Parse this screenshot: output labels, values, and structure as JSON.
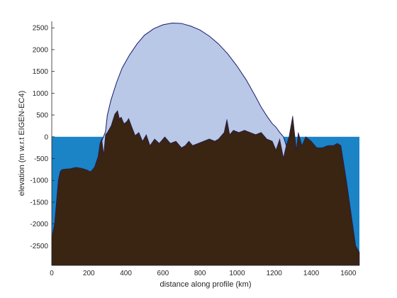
{
  "chart_data": {
    "type": "area",
    "xlabel": "distance along profile (km)",
    "ylabel": "elevation (m w.r.t EIGEN-EC4)",
    "xlim": [
      0,
      1660
    ],
    "ylim": [
      -2950,
      2650
    ],
    "xticks": [
      0,
      200,
      400,
      600,
      800,
      1000,
      1200,
      1400,
      1600
    ],
    "yticks": [
      -2500,
      -2000,
      -1500,
      -1000,
      -500,
      0,
      500,
      1000,
      1500,
      2000,
      2500
    ],
    "grid": false,
    "colors": {
      "ocean": "#1a84c7",
      "ice": "#b8c8e6",
      "bed": "#3a2412",
      "ice_outline": "#1a1a6e",
      "axis": "#262626"
    },
    "series": [
      {
        "role": "ocean",
        "x": [
          0,
          1660
        ],
        "values": [
          0,
          0
        ]
      },
      {
        "role": "ice-surface",
        "x": [
          270,
          290,
          300,
          320,
          350,
          380,
          420,
          460,
          500,
          550,
          600,
          650,
          700,
          750,
          800,
          850,
          900,
          950,
          1000,
          1050,
          1100,
          1130,
          1160,
          1190,
          1210,
          1230,
          1250,
          1265
        ],
        "values": [
          -100,
          120,
          500,
          850,
          1250,
          1580,
          1880,
          2130,
          2330,
          2480,
          2570,
          2610,
          2600,
          2540,
          2450,
          2310,
          2130,
          1900,
          1620,
          1300,
          920,
          680,
          480,
          300,
          220,
          100,
          0,
          -200
        ]
      },
      {
        "role": "bed",
        "x": [
          0,
          5,
          15,
          25,
          35,
          45,
          55,
          70,
          100,
          130,
          160,
          190,
          210,
          230,
          250,
          260,
          270,
          280,
          290,
          300,
          320,
          340,
          355,
          365,
          375,
          390,
          405,
          415,
          430,
          450,
          470,
          490,
          510,
          530,
          555,
          580,
          610,
          640,
          670,
          700,
          720,
          740,
          760,
          790,
          820,
          850,
          880,
          900,
          930,
          945,
          960,
          980,
          1010,
          1040,
          1070,
          1100,
          1130,
          1160,
          1190,
          1210,
          1230,
          1250,
          1265,
          1280,
          1300,
          1320,
          1330,
          1350,
          1370,
          1400,
          1430,
          1460,
          1490,
          1520,
          1540,
          1560,
          1590,
          1620,
          1640,
          1660
        ],
        "values": [
          -2300,
          -2200,
          -2000,
          -1500,
          -1000,
          -800,
          -750,
          -740,
          -730,
          -700,
          -720,
          -760,
          -800,
          -700,
          -450,
          -150,
          -50,
          -400,
          50,
          100,
          250,
          520,
          600,
          420,
          450,
          300,
          350,
          420,
          250,
          30,
          100,
          -100,
          50,
          -200,
          -50,
          -150,
          0,
          -150,
          -100,
          -250,
          -200,
          -100,
          -200,
          -150,
          -100,
          -50,
          -100,
          -50,
          100,
          400,
          50,
          150,
          100,
          150,
          100,
          50,
          100,
          -50,
          -100,
          -300,
          -50,
          -480,
          -200,
          0,
          480,
          -300,
          100,
          -200,
          0,
          -100,
          -250,
          -250,
          -200,
          -200,
          -150,
          -200,
          -1000,
          -1900,
          -2500,
          -2650
        ]
      }
    ]
  }
}
